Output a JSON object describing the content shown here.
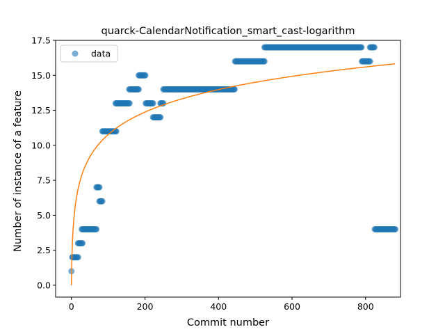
{
  "chart_data": {
    "type": "scatter",
    "title": "quarck-CalendarNotification_smart_cast-logarithm",
    "xlabel": "Commit number",
    "ylabel": "Number of instance of a feature",
    "xlim": [
      -43,
      895
    ],
    "ylim": [
      -0.85,
      17.5
    ],
    "xticks": [
      0,
      200,
      400,
      600,
      800
    ],
    "yticks": [
      0.0,
      2.5,
      5.0,
      7.5,
      10.0,
      12.5,
      15.0,
      17.5
    ],
    "xtick_labels": [
      "0",
      "200",
      "400",
      "600",
      "800"
    ],
    "ytick_labels": [
      "0.0",
      "2.5",
      "5.0",
      "7.5",
      "10.0",
      "12.5",
      "15.0",
      "17.5"
    ],
    "legend": {
      "position": "upper-left",
      "entries": [
        "data"
      ]
    },
    "colors": {
      "data": "#1f77b4",
      "fit": "#ff7f0e"
    },
    "series": [
      {
        "name": "data",
        "kind": "scatter",
        "segments": [
          {
            "x_start": 0,
            "x_end": 1,
            "y": 1
          },
          {
            "x_start": 2,
            "x_end": 18,
            "y": 2
          },
          {
            "x_start": 18,
            "x_end": 30,
            "y": 3
          },
          {
            "x_start": 28,
            "x_end": 68,
            "y": 4
          },
          {
            "x_start": 68,
            "x_end": 76,
            "y": 7
          },
          {
            "x_start": 76,
            "x_end": 84,
            "y": 6
          },
          {
            "x_start": 84,
            "x_end": 122,
            "y": 11
          },
          {
            "x_start": 120,
            "x_end": 158,
            "y": 13
          },
          {
            "x_start": 157,
            "x_end": 183,
            "y": 14
          },
          {
            "x_start": 183,
            "x_end": 202,
            "y": 15
          },
          {
            "x_start": 202,
            "x_end": 222,
            "y": 13
          },
          {
            "x_start": 222,
            "x_end": 242,
            "y": 12
          },
          {
            "x_start": 242,
            "x_end": 250,
            "y": 13
          },
          {
            "x_start": 250,
            "x_end": 445,
            "y": 14
          },
          {
            "x_start": 445,
            "x_end": 525,
            "y": 16
          },
          {
            "x_start": 525,
            "x_end": 790,
            "y": 17
          },
          {
            "x_start": 790,
            "x_end": 812,
            "y": 16
          },
          {
            "x_start": 812,
            "x_end": 825,
            "y": 17
          },
          {
            "x_start": 825,
            "x_end": 882,
            "y": 4
          }
        ]
      },
      {
        "name": "fit",
        "kind": "line",
        "model": "logarithm",
        "coef_a": 0.0,
        "coef_b": 2.333,
        "x_range": [
          0,
          880
        ]
      }
    ]
  }
}
